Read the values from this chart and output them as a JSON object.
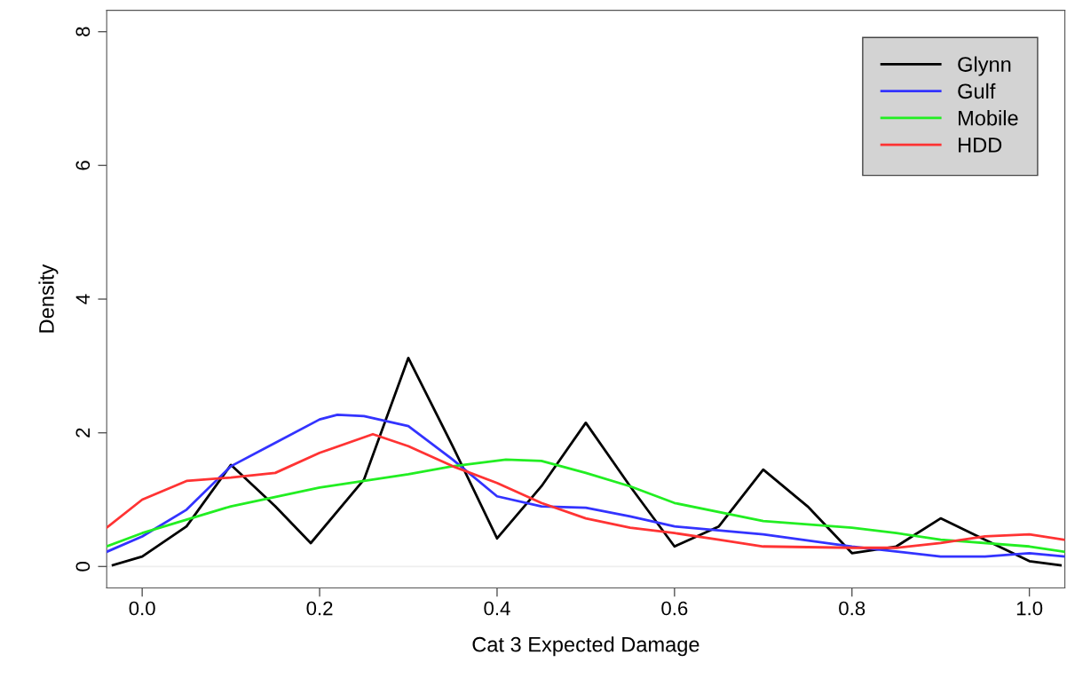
{
  "chart_data": {
    "type": "line",
    "xlabel": "Cat 3 Expected Damage",
    "ylabel": "Density",
    "xlim": [
      -0.04,
      1.04
    ],
    "ylim": [
      -0.32,
      8.32
    ],
    "xticks": [
      {
        "value": 0,
        "label": "0.0"
      },
      0.2,
      0.4,
      0.6,
      0.8,
      {
        "value": 1,
        "label": "1.0"
      }
    ],
    "yticks": [
      0,
      2,
      4,
      6,
      8
    ],
    "grid": false,
    "legend": "top right",
    "marker": "none",
    "line_style": "solid",
    "ref_lines": [
      {
        "axis": "y",
        "value": 0,
        "color": "#eeeeee"
      }
    ],
    "series": [
      {
        "name": "Glynn",
        "color": "#000000",
        "x": [
          -0.033,
          0.0,
          0.05,
          0.1,
          0.15,
          0.19,
          0.25,
          0.3,
          0.35,
          0.4,
          0.45,
          0.5,
          0.55,
          0.6,
          0.65,
          0.7,
          0.75,
          0.8,
          0.85,
          0.9,
          0.95,
          1.0,
          1.035
        ],
        "values": [
          0.02,
          0.15,
          0.6,
          1.52,
          0.9,
          0.35,
          1.3,
          3.12,
          1.8,
          0.42,
          1.2,
          2.15,
          1.2,
          0.3,
          0.6,
          1.45,
          0.9,
          0.2,
          0.3,
          0.72,
          0.4,
          0.08,
          0.02
        ]
      },
      {
        "name": "Gulf",
        "color": "#3333ff",
        "x": [
          -0.04,
          0.0,
          0.05,
          0.1,
          0.15,
          0.2,
          0.22,
          0.25,
          0.3,
          0.35,
          0.4,
          0.45,
          0.5,
          0.55,
          0.6,
          0.7,
          0.8,
          0.9,
          0.95,
          1.0,
          1.04
        ],
        "values": [
          0.22,
          0.45,
          0.85,
          1.5,
          1.85,
          2.2,
          2.27,
          2.25,
          2.1,
          1.6,
          1.05,
          0.9,
          0.88,
          0.75,
          0.6,
          0.48,
          0.3,
          0.15,
          0.15,
          0.2,
          0.15
        ]
      },
      {
        "name": "Mobile",
        "color": "#22ee22",
        "x": [
          -0.04,
          0.0,
          0.1,
          0.2,
          0.3,
          0.35,
          0.41,
          0.45,
          0.5,
          0.55,
          0.6,
          0.7,
          0.8,
          0.85,
          0.9,
          1.0,
          1.04
        ],
        "values": [
          0.3,
          0.5,
          0.9,
          1.18,
          1.38,
          1.5,
          1.6,
          1.58,
          1.4,
          1.2,
          0.95,
          0.68,
          0.58,
          0.5,
          0.4,
          0.3,
          0.22
        ]
      },
      {
        "name": "HDD",
        "color": "#ff3333",
        "x": [
          -0.04,
          0.0,
          0.05,
          0.1,
          0.15,
          0.2,
          0.26,
          0.3,
          0.35,
          0.4,
          0.45,
          0.5,
          0.55,
          0.6,
          0.65,
          0.7,
          0.8,
          0.85,
          0.9,
          0.95,
          1.0,
          1.04
        ],
        "values": [
          0.58,
          1.0,
          1.28,
          1.33,
          1.4,
          1.7,
          1.98,
          1.8,
          1.5,
          1.25,
          0.95,
          0.72,
          0.58,
          0.5,
          0.4,
          0.3,
          0.28,
          0.28,
          0.35,
          0.45,
          0.48,
          0.4
        ]
      }
    ]
  }
}
